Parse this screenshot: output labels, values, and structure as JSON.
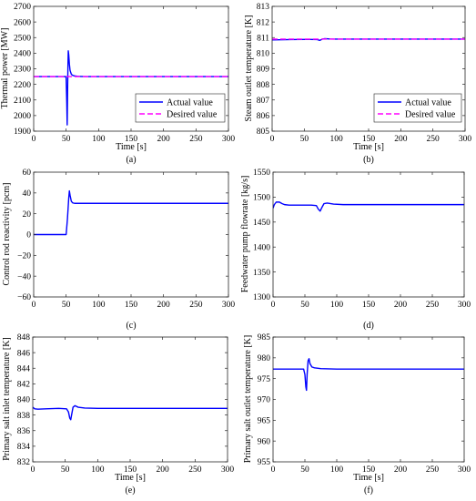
{
  "chart_data": [
    {
      "id": "a",
      "type": "line",
      "caption": "(a)",
      "xlabel": "Time [s]",
      "ylabel": "Thermal power [MW]",
      "xlim": [
        0,
        300
      ],
      "ylim": [
        1900,
        2700
      ],
      "xticks": [
        0,
        50,
        100,
        150,
        200,
        250,
        300
      ],
      "yticks": [
        1900,
        2000,
        2100,
        2200,
        2300,
        2400,
        2500,
        2600,
        2700
      ],
      "grid": false,
      "legend": "bottom-right",
      "series": [
        {
          "name": "Actual value",
          "color": "#0000ff",
          "style": "solid",
          "x": [
            0,
            49.5,
            50,
            51,
            51.6,
            52.2,
            52.8,
            53.3,
            54,
            55,
            56,
            58,
            60,
            63,
            67,
            72,
            80,
            100,
            300
          ],
          "y": [
            2250,
            2250,
            2240,
            2080,
            1940,
            2150,
            2320,
            2415,
            2390,
            2330,
            2290,
            2265,
            2258,
            2254,
            2252,
            2251,
            2250,
            2250,
            2250
          ]
        },
        {
          "name": "Desired value",
          "color": "#ff00ff",
          "style": "dashed",
          "x": [
            0,
            300
          ],
          "y": [
            2250,
            2250
          ]
        }
      ]
    },
    {
      "id": "b",
      "type": "line",
      "caption": "(b)",
      "xlabel": "Time [s]",
      "ylabel": "Steam outlet temperature [K]",
      "xlim": [
        0,
        300
      ],
      "ylim": [
        805,
        813
      ],
      "xticks": [
        0,
        50,
        100,
        150,
        200,
        250,
        300
      ],
      "yticks": [
        805,
        806,
        807,
        808,
        809,
        810,
        811,
        812,
        813
      ],
      "grid": false,
      "legend": "bottom-right",
      "series": [
        {
          "name": "Actual value",
          "color": "#0000ff",
          "style": "solid",
          "x": [
            0,
            10,
            30,
            50,
            60,
            70,
            74,
            78,
            82,
            90,
            100,
            300
          ],
          "y": [
            810.85,
            810.86,
            810.87,
            810.88,
            810.88,
            810.87,
            810.82,
            810.9,
            810.93,
            810.91,
            810.9,
            810.9
          ]
        },
        {
          "name": "Desired value",
          "color": "#ff00ff",
          "style": "dashed",
          "x": [
            0,
            300
          ],
          "y": [
            810.9,
            810.9
          ]
        }
      ]
    },
    {
      "id": "c",
      "type": "line",
      "caption": "(c)",
      "xlabel": "",
      "ylabel": "Control rod reactivity [pcm]",
      "xlim": [
        0,
        300
      ],
      "ylim": [
        -60,
        60
      ],
      "xticks": [
        0,
        50,
        100,
        150,
        200,
        250,
        300
      ],
      "yticks": [
        -60,
        -40,
        -20,
        0,
        20,
        40,
        60
      ],
      "grid": false,
      "legend": "none",
      "series": [
        {
          "color": "#0000ff",
          "style": "solid",
          "x": [
            0,
            50,
            52,
            54,
            55,
            56,
            58,
            60,
            63,
            70,
            100,
            300
          ],
          "y": [
            0,
            0,
            15,
            35,
            42,
            38,
            32,
            30.5,
            30,
            30,
            30,
            30
          ]
        }
      ]
    },
    {
      "id": "d",
      "type": "line",
      "caption": "(d)",
      "xlabel": "",
      "ylabel": "Feedwater pump flowrate [kg/s]",
      "xlim": [
        0,
        300
      ],
      "ylim": [
        1300,
        1550
      ],
      "xticks": [
        0,
        50,
        100,
        150,
        200,
        250,
        300
      ],
      "yticks": [
        1300,
        1350,
        1400,
        1450,
        1500,
        1550
      ],
      "grid": false,
      "legend": "none",
      "series": [
        {
          "color": "#0000ff",
          "style": "solid",
          "x": [
            0,
            2,
            5,
            10,
            14,
            18,
            25,
            40,
            60,
            68,
            71,
            74,
            77,
            80,
            85,
            95,
            110,
            300
          ],
          "y": [
            1478,
            1485,
            1490,
            1490,
            1487,
            1485,
            1484,
            1484,
            1484,
            1483,
            1476,
            1472,
            1480,
            1487,
            1488,
            1486,
            1485,
            1485
          ]
        }
      ]
    },
    {
      "id": "e",
      "type": "line",
      "caption": "(e)",
      "xlabel": "Time [s]",
      "ylabel": "Primary salt inlet temperature [K]",
      "xlim": [
        0,
        300
      ],
      "ylim": [
        832,
        848
      ],
      "xticks": [
        0,
        50,
        100,
        150,
        200,
        250,
        300
      ],
      "yticks": [
        832,
        834,
        836,
        838,
        840,
        842,
        844,
        846,
        848
      ],
      "grid": false,
      "legend": "none",
      "series": [
        {
          "color": "#0000ff",
          "style": "solid",
          "x": [
            0,
            3,
            8,
            20,
            40,
            52,
            55,
            57,
            58.5,
            60,
            62,
            65,
            70,
            80,
            100,
            300
          ],
          "y": [
            839.0,
            838.8,
            838.75,
            838.8,
            838.85,
            838.8,
            838.4,
            837.6,
            837.4,
            838.1,
            839.0,
            839.2,
            839.0,
            838.9,
            838.85,
            838.85
          ]
        }
      ]
    },
    {
      "id": "f",
      "type": "line",
      "caption": "(f)",
      "xlabel": "Time [s]",
      "ylabel": "Primary salt outlet temperature [K]",
      "xlim": [
        0,
        300
      ],
      "ylim": [
        955,
        985
      ],
      "xticks": [
        0,
        50,
        100,
        150,
        200,
        250,
        300
      ],
      "yticks": [
        955,
        960,
        965,
        970,
        975,
        980,
        985
      ],
      "grid": false,
      "legend": "none",
      "series": [
        {
          "color": "#0000ff",
          "style": "solid",
          "x": [
            0,
            48,
            50,
            51.5,
            52.5,
            53.5,
            55,
            56.5,
            58,
            61,
            65,
            75,
            100,
            300
          ],
          "y": [
            977.3,
            977.3,
            976,
            973,
            972.2,
            976,
            979.3,
            979.8,
            978.6,
            977.8,
            977.6,
            977.4,
            977.3,
            977.3
          ]
        }
      ]
    }
  ]
}
